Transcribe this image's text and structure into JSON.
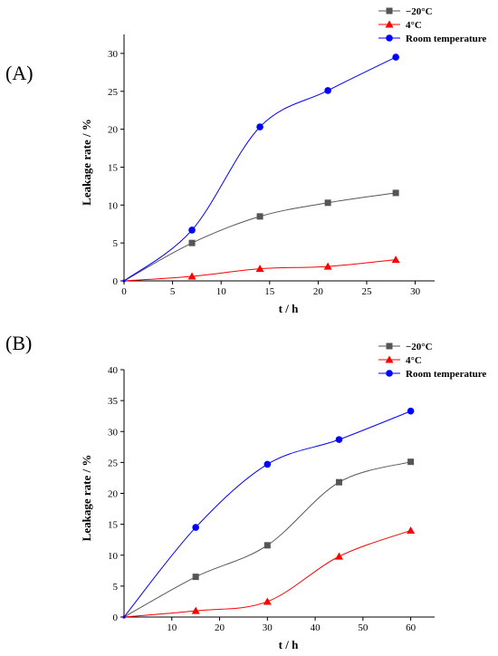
{
  "chart_data": [
    {
      "panel_label": "(A)",
      "type": "line",
      "xlabel": "t / h",
      "ylabel": "Leakage rate /  %",
      "xlim": [
        0,
        32
      ],
      "ylim": [
        0,
        32.5
      ],
      "xticks": [
        0,
        5,
        10,
        15,
        20,
        25,
        30
      ],
      "yticks": [
        0,
        5,
        10,
        15,
        20,
        25,
        30
      ],
      "legend_position": "top-right",
      "series": [
        {
          "name": "−20°C",
          "marker": "square",
          "color": "#555555",
          "x": [
            0,
            7,
            14,
            21,
            28
          ],
          "y": [
            0,
            5.0,
            8.5,
            10.3,
            11.6
          ]
        },
        {
          "name": "4°C",
          "marker": "triangle",
          "color": "#ff0000",
          "x": [
            0,
            7,
            14,
            21,
            28
          ],
          "y": [
            0,
            0.6,
            1.6,
            1.9,
            2.8
          ]
        },
        {
          "name": "Room temperature",
          "marker": "circle",
          "color": "#0000ff",
          "x": [
            0,
            7,
            14,
            21,
            28
          ],
          "y": [
            0,
            6.7,
            20.3,
            25.1,
            29.5
          ]
        }
      ]
    },
    {
      "panel_label": "(B)",
      "type": "line",
      "xlabel": "t / h",
      "ylabel": "Leakage rate / %",
      "xlim": [
        0,
        65
      ],
      "ylim": [
        0,
        40
      ],
      "xticks": [
        10,
        20,
        30,
        40,
        50,
        60
      ],
      "yticks": [
        0,
        5,
        10,
        15,
        20,
        25,
        30,
        35,
        40
      ],
      "legend_position": "top-right",
      "series": [
        {
          "name": "−20°C",
          "marker": "square",
          "color": "#555555",
          "x": [
            0,
            15,
            30,
            45,
            60
          ],
          "y": [
            0,
            6.5,
            11.6,
            21.8,
            25.1
          ]
        },
        {
          "name": "4°C",
          "marker": "triangle",
          "color": "#ff0000",
          "x": [
            0,
            15,
            30,
            45,
            60
          ],
          "y": [
            0,
            1.0,
            2.5,
            9.8,
            14.0
          ]
        },
        {
          "name": "Room temperature",
          "marker": "circle",
          "color": "#0000ff",
          "x": [
            0,
            15,
            30,
            45,
            60
          ],
          "y": [
            0,
            14.5,
            24.7,
            28.7,
            33.3
          ]
        }
      ]
    }
  ]
}
